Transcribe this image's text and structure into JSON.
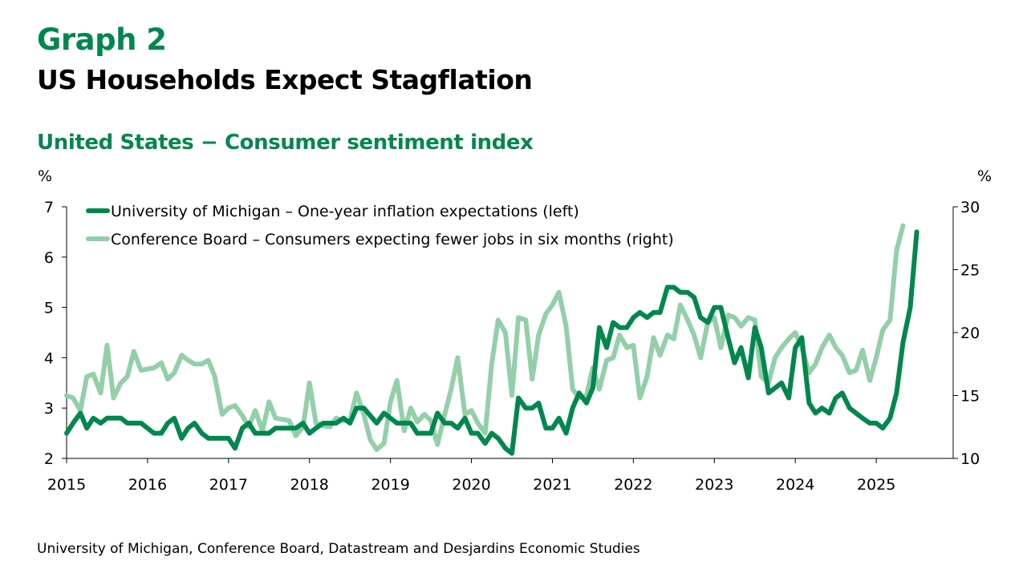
{
  "header": {
    "graph_label": "Graph 2",
    "title": "US Households Expect Stagflation",
    "subtitle": "United States − Consumer sentiment index"
  },
  "source": "University of Michigan, Conference Board, Datastream and Desjardins Economic Studies",
  "chart_data": {
    "type": "line",
    "left_axis": {
      "unit_label": "%",
      "ylim": [
        2,
        7
      ],
      "ticks": [
        2,
        3,
        4,
        5,
        6,
        7
      ]
    },
    "right_axis": {
      "unit_label": "%",
      "ylim": [
        10,
        30
      ],
      "ticks": [
        10,
        15,
        20,
        25,
        30
      ]
    },
    "x_axis": {
      "range": [
        2015,
        2025.95
      ],
      "tick_labels": [
        "2015",
        "2016",
        "2017",
        "2018",
        "2019",
        "2020",
        "2021",
        "2022",
        "2023",
        "2024",
        "2025"
      ]
    },
    "legend_position": "top-left",
    "grid": false,
    "series": [
      {
        "name": "University of Michigan – One-year inflation expectations (left)",
        "axis": "left",
        "color": "#00874e",
        "points": [
          [
            2015.0,
            2.5
          ],
          [
            2015.08,
            2.7
          ],
          [
            2015.17,
            2.9
          ],
          [
            2015.25,
            2.6
          ],
          [
            2015.33,
            2.8
          ],
          [
            2015.42,
            2.7
          ],
          [
            2015.5,
            2.8
          ],
          [
            2015.67,
            2.8
          ],
          [
            2015.75,
            2.7
          ],
          [
            2015.92,
            2.7
          ],
          [
            2016.08,
            2.5
          ],
          [
            2016.17,
            2.5
          ],
          [
            2016.25,
            2.7
          ],
          [
            2016.33,
            2.8
          ],
          [
            2016.42,
            2.4
          ],
          [
            2016.5,
            2.6
          ],
          [
            2016.58,
            2.7
          ],
          [
            2016.67,
            2.5
          ],
          [
            2016.75,
            2.4
          ],
          [
            2016.92,
            2.4
          ],
          [
            2017.0,
            2.4
          ],
          [
            2017.08,
            2.2
          ],
          [
            2017.17,
            2.6
          ],
          [
            2017.25,
            2.7
          ],
          [
            2017.33,
            2.5
          ],
          [
            2017.5,
            2.5
          ],
          [
            2017.58,
            2.6
          ],
          [
            2017.83,
            2.6
          ],
          [
            2017.92,
            2.7
          ],
          [
            2018.0,
            2.5
          ],
          [
            2018.08,
            2.6
          ],
          [
            2018.17,
            2.7
          ],
          [
            2018.33,
            2.7
          ],
          [
            2018.42,
            2.8
          ],
          [
            2018.5,
            2.7
          ],
          [
            2018.58,
            3.0
          ],
          [
            2018.67,
            3.0
          ],
          [
            2018.83,
            2.7
          ],
          [
            2018.92,
            2.9
          ],
          [
            2019.08,
            2.7
          ],
          [
            2019.25,
            2.7
          ],
          [
            2019.33,
            2.5
          ],
          [
            2019.5,
            2.5
          ],
          [
            2019.58,
            2.9
          ],
          [
            2019.67,
            2.7
          ],
          [
            2019.75,
            2.7
          ],
          [
            2019.83,
            2.6
          ],
          [
            2019.92,
            2.8
          ],
          [
            2020.0,
            2.5
          ],
          [
            2020.08,
            2.5
          ],
          [
            2020.17,
            2.3
          ],
          [
            2020.25,
            2.5
          ],
          [
            2020.33,
            2.4
          ],
          [
            2020.42,
            2.2
          ],
          [
            2020.5,
            2.1
          ],
          [
            2020.58,
            3.2
          ],
          [
            2020.67,
            3.0
          ],
          [
            2020.75,
            3.0
          ],
          [
            2020.83,
            3.1
          ],
          [
            2020.92,
            2.6
          ],
          [
            2021.0,
            2.6
          ],
          [
            2021.08,
            2.8
          ],
          [
            2021.17,
            2.5
          ],
          [
            2021.25,
            3.0
          ],
          [
            2021.33,
            3.3
          ],
          [
            2021.42,
            3.1
          ],
          [
            2021.5,
            3.4
          ],
          [
            2021.58,
            4.6
          ],
          [
            2021.67,
            4.2
          ],
          [
            2021.75,
            4.7
          ],
          [
            2021.83,
            4.6
          ],
          [
            2021.92,
            4.6
          ],
          [
            2022.0,
            4.8
          ],
          [
            2022.08,
            4.9
          ],
          [
            2022.17,
            4.8
          ],
          [
            2022.25,
            4.9
          ],
          [
            2022.33,
            4.9
          ],
          [
            2022.42,
            5.4
          ],
          [
            2022.5,
            5.4
          ],
          [
            2022.58,
            5.3
          ],
          [
            2022.67,
            5.3
          ],
          [
            2022.75,
            5.2
          ],
          [
            2022.83,
            4.8
          ],
          [
            2022.92,
            4.7
          ],
          [
            2023.0,
            5.0
          ],
          [
            2023.08,
            5.0
          ],
          [
            2023.17,
            4.4
          ],
          [
            2023.25,
            3.9
          ],
          [
            2023.33,
            4.2
          ],
          [
            2023.42,
            3.6
          ],
          [
            2023.5,
            4.6
          ],
          [
            2023.58,
            4.2
          ],
          [
            2023.67,
            3.3
          ],
          [
            2023.75,
            3.4
          ],
          [
            2023.83,
            3.5
          ],
          [
            2023.92,
            3.2
          ],
          [
            2024.0,
            4.2
          ],
          [
            2024.08,
            4.4
          ],
          [
            2024.17,
            3.1
          ],
          [
            2024.25,
            2.9
          ],
          [
            2024.33,
            3.0
          ],
          [
            2024.42,
            2.9
          ],
          [
            2024.5,
            3.2
          ],
          [
            2024.58,
            3.3
          ],
          [
            2024.67,
            3.0
          ],
          [
            2024.75,
            2.9
          ],
          [
            2024.83,
            2.8
          ],
          [
            2024.92,
            2.7
          ],
          [
            2025.0,
            2.7
          ],
          [
            2025.08,
            2.6
          ],
          [
            2025.17,
            2.8
          ],
          [
            2025.25,
            3.3
          ],
          [
            2025.33,
            4.3
          ],
          [
            2025.42,
            5.0
          ],
          [
            2025.5,
            6.5
          ]
        ]
      },
      {
        "name": "Conference Board – Consumers expecting fewer jobs in six months (right)",
        "axis": "right",
        "color": "#93cfa9",
        "points": [
          [
            2015.0,
            15.0
          ],
          [
            2015.08,
            14.8
          ],
          [
            2015.17,
            13.8
          ],
          [
            2015.25,
            16.5
          ],
          [
            2015.33,
            16.7
          ],
          [
            2015.42,
            15.2
          ],
          [
            2015.5,
            19.0
          ],
          [
            2015.58,
            14.8
          ],
          [
            2015.67,
            16.0
          ],
          [
            2015.75,
            16.5
          ],
          [
            2015.83,
            18.5
          ],
          [
            2015.92,
            17.0
          ],
          [
            2016.08,
            17.2
          ],
          [
            2016.17,
            17.6
          ],
          [
            2016.25,
            16.3
          ],
          [
            2016.33,
            16.8
          ],
          [
            2016.42,
            18.2
          ],
          [
            2016.5,
            17.8
          ],
          [
            2016.58,
            17.5
          ],
          [
            2016.67,
            17.5
          ],
          [
            2016.75,
            17.8
          ],
          [
            2016.83,
            16.5
          ],
          [
            2016.92,
            13.5
          ],
          [
            2017.0,
            14.0
          ],
          [
            2017.08,
            14.2
          ],
          [
            2017.17,
            13.4
          ],
          [
            2017.25,
            12.5
          ],
          [
            2017.33,
            13.8
          ],
          [
            2017.42,
            12.2
          ],
          [
            2017.5,
            14.5
          ],
          [
            2017.58,
            13.2
          ],
          [
            2017.67,
            13.1
          ],
          [
            2017.75,
            13.0
          ],
          [
            2017.83,
            11.8
          ],
          [
            2017.92,
            12.5
          ],
          [
            2018.0,
            16.0
          ],
          [
            2018.08,
            12.8
          ],
          [
            2018.17,
            12.6
          ],
          [
            2018.25,
            12.5
          ],
          [
            2018.33,
            13.2
          ],
          [
            2018.42,
            13.0
          ],
          [
            2018.5,
            13.0
          ],
          [
            2018.58,
            15.2
          ],
          [
            2018.67,
            13.5
          ],
          [
            2018.75,
            11.5
          ],
          [
            2018.83,
            10.7
          ],
          [
            2018.92,
            11.2
          ],
          [
            2019.0,
            14.5
          ],
          [
            2019.08,
            16.2
          ],
          [
            2019.17,
            12.2
          ],
          [
            2019.25,
            14.0
          ],
          [
            2019.33,
            12.9
          ],
          [
            2019.42,
            13.5
          ],
          [
            2019.5,
            13.0
          ],
          [
            2019.58,
            11.1
          ],
          [
            2019.67,
            13.5
          ],
          [
            2019.75,
            15.5
          ],
          [
            2019.83,
            18.0
          ],
          [
            2019.92,
            13.5
          ],
          [
            2020.0,
            13.8
          ],
          [
            2020.08,
            12.8
          ],
          [
            2020.17,
            12.0
          ],
          [
            2020.25,
            17.5
          ],
          [
            2020.33,
            21.0
          ],
          [
            2020.42,
            20.0
          ],
          [
            2020.5,
            15.0
          ],
          [
            2020.58,
            21.2
          ],
          [
            2020.67,
            21.0
          ],
          [
            2020.75,
            16.3
          ],
          [
            2020.83,
            19.8
          ],
          [
            2020.92,
            21.5
          ],
          [
            2021.0,
            22.2
          ],
          [
            2021.08,
            23.2
          ],
          [
            2021.17,
            20.5
          ],
          [
            2021.25,
            15.5
          ],
          [
            2021.33,
            14.8
          ],
          [
            2021.42,
            15.0
          ],
          [
            2021.5,
            17.2
          ],
          [
            2021.58,
            15.5
          ],
          [
            2021.67,
            17.8
          ],
          [
            2021.75,
            18.0
          ],
          [
            2021.83,
            19.8
          ],
          [
            2021.92,
            18.8
          ],
          [
            2022.0,
            19.0
          ],
          [
            2022.08,
            14.8
          ],
          [
            2022.17,
            16.5
          ],
          [
            2022.25,
            19.6
          ],
          [
            2022.33,
            18.2
          ],
          [
            2022.42,
            19.8
          ],
          [
            2022.5,
            19.5
          ],
          [
            2022.58,
            22.2
          ],
          [
            2022.67,
            21.0
          ],
          [
            2022.75,
            19.8
          ],
          [
            2022.83,
            18.0
          ],
          [
            2022.92,
            20.8
          ],
          [
            2023.0,
            21.2
          ],
          [
            2023.08,
            18.8
          ],
          [
            2023.17,
            21.4
          ],
          [
            2023.25,
            21.2
          ],
          [
            2023.33,
            20.5
          ],
          [
            2023.42,
            21.2
          ],
          [
            2023.5,
            21.0
          ],
          [
            2023.58,
            16.5
          ],
          [
            2023.67,
            16.0
          ],
          [
            2023.75,
            18.0
          ],
          [
            2023.83,
            18.8
          ],
          [
            2023.92,
            19.5
          ],
          [
            2024.0,
            20.0
          ],
          [
            2024.08,
            18.8
          ],
          [
            2024.17,
            16.8
          ],
          [
            2024.25,
            17.5
          ],
          [
            2024.33,
            18.8
          ],
          [
            2024.42,
            19.8
          ],
          [
            2024.5,
            18.8
          ],
          [
            2024.58,
            18.2
          ],
          [
            2024.67,
            16.8
          ],
          [
            2024.75,
            17.0
          ],
          [
            2024.83,
            18.6
          ],
          [
            2024.92,
            16.2
          ],
          [
            2025.0,
            18.0
          ],
          [
            2025.08,
            20.2
          ],
          [
            2025.17,
            21.0
          ],
          [
            2025.25,
            26.5
          ],
          [
            2025.33,
            28.5
          ]
        ]
      }
    ]
  }
}
